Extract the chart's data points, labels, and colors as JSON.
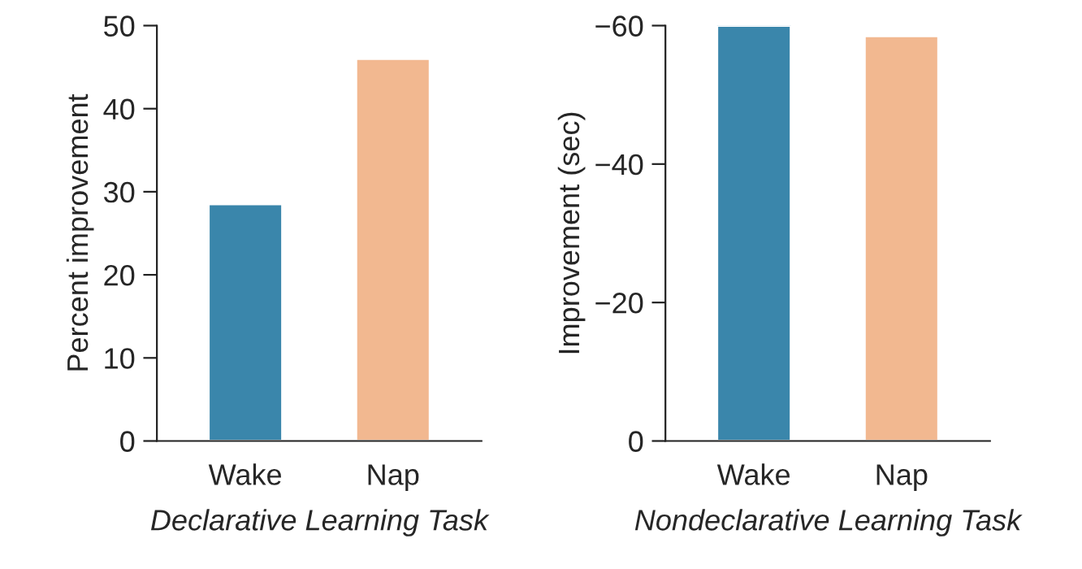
{
  "chart_data": [
    {
      "type": "bar",
      "xlabel": "Declarative Learning Task",
      "ylabel": "Percent improvement",
      "categories": [
        "Wake",
        "Nap"
      ],
      "values": [
        28.5,
        46
      ],
      "colors": [
        "#3a86ab",
        "#f2b890"
      ],
      "ylim": [
        0,
        50
      ],
      "yticks": [
        0,
        10,
        20,
        30,
        40,
        50
      ],
      "grid": false
    },
    {
      "type": "bar",
      "xlabel": "Nondeclarative Learning Task",
      "ylabel": "Improvement (sec)",
      "categories": [
        "Wake",
        "Nap"
      ],
      "values": [
        -60,
        -58.5
      ],
      "colors": [
        "#3a86ab",
        "#f2b890"
      ],
      "ylim": [
        0,
        -60
      ],
      "yticks": [
        {
          "value": 0,
          "label": "0"
        },
        {
          "value": -20,
          "label": "−20"
        },
        {
          "value": -40,
          "label": "−40"
        },
        {
          "value": -60,
          "label": "−60"
        }
      ],
      "grid": false
    }
  ]
}
